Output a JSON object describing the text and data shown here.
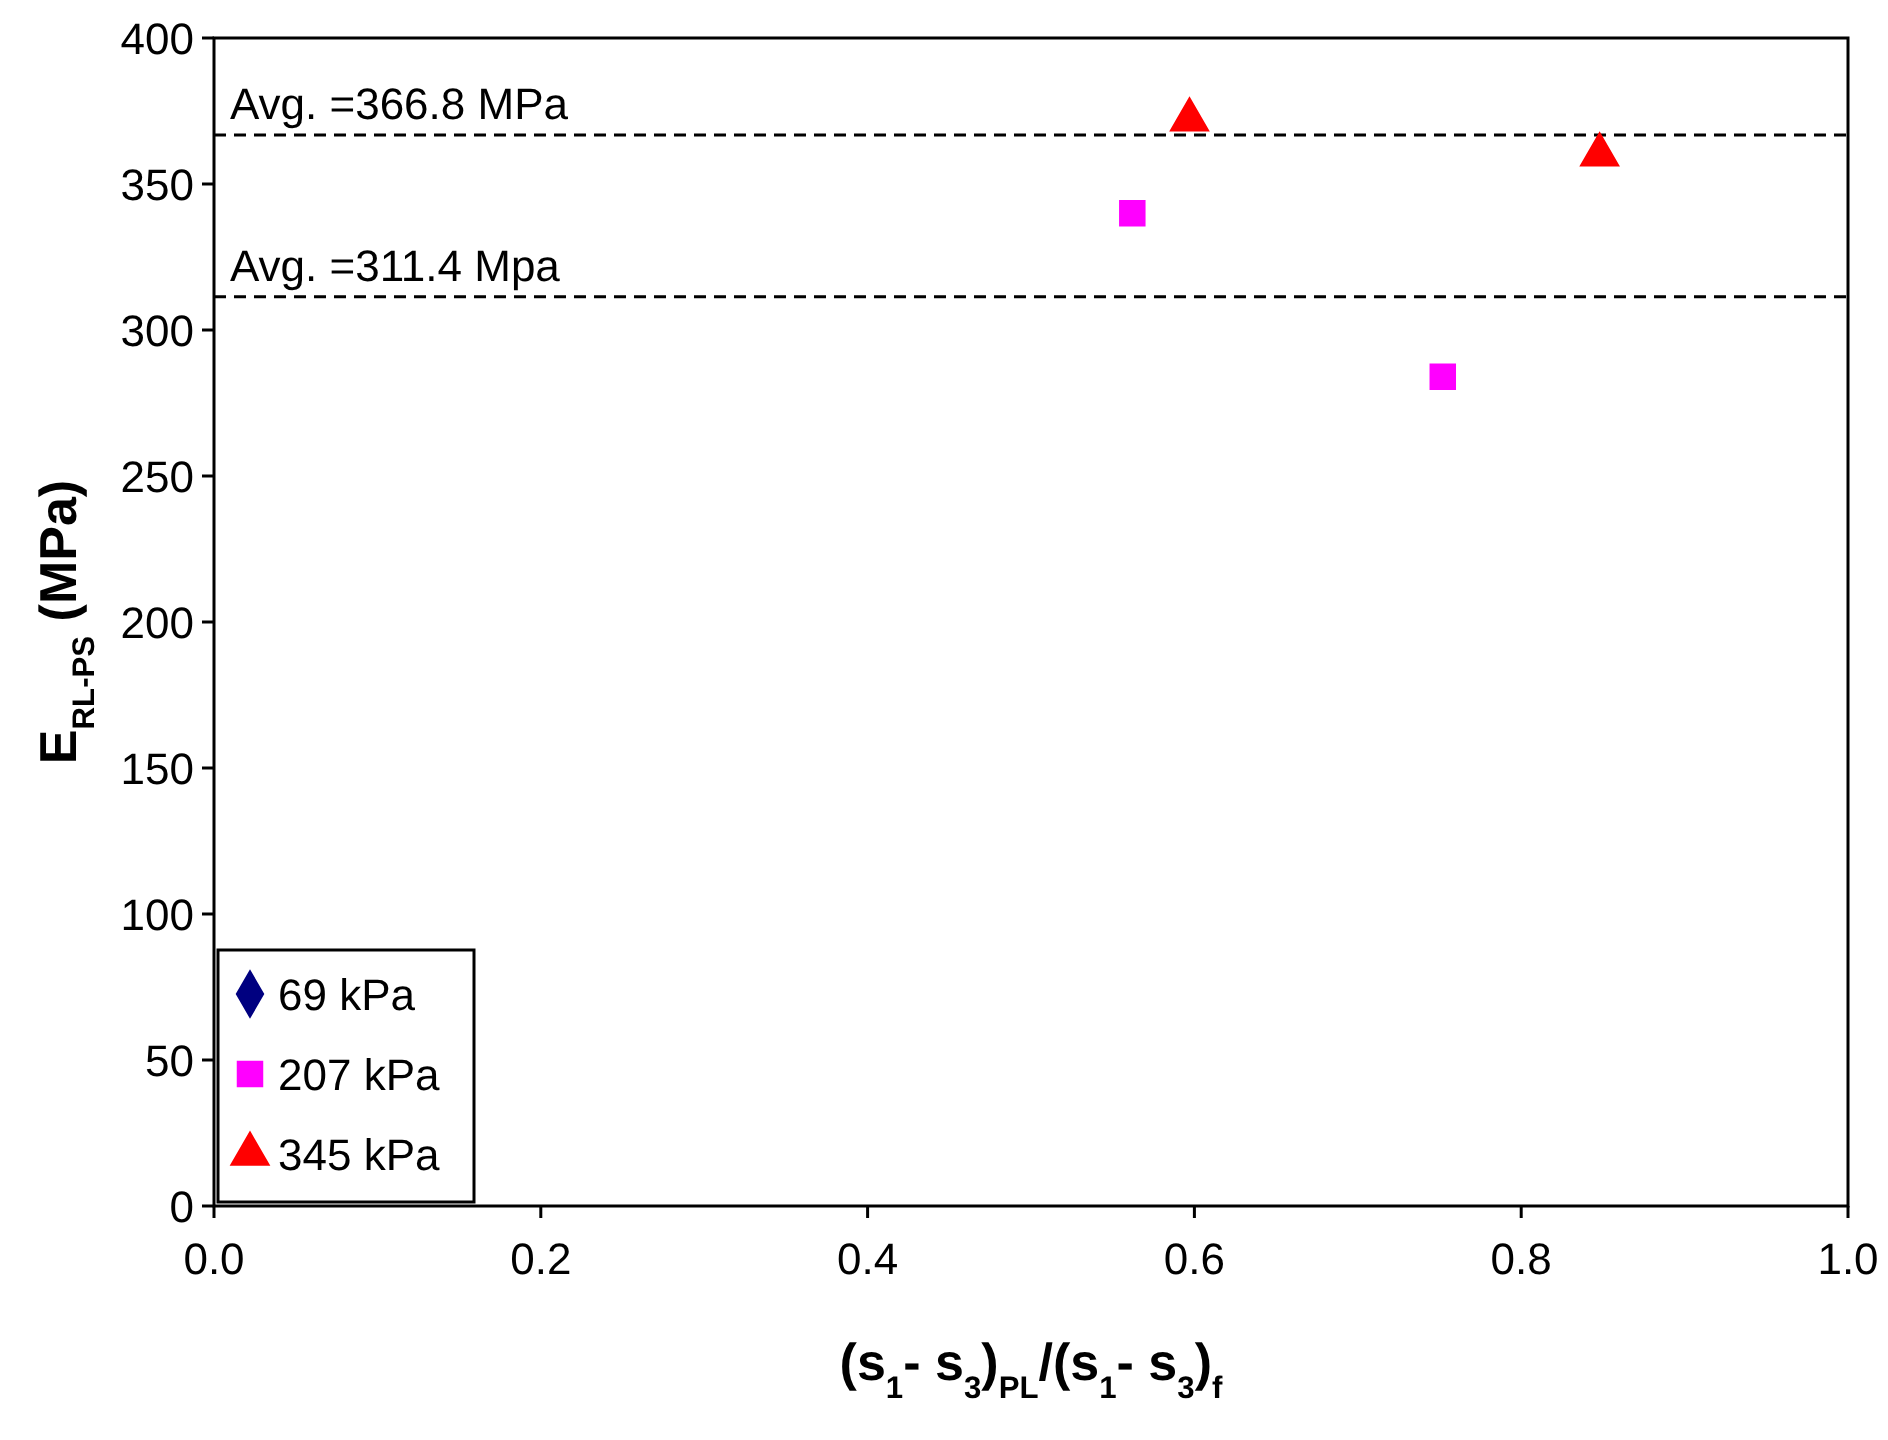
{
  "chart_data": {
    "type": "scatter",
    "xlabel": "(s$_{1}$- s$_{3}$)$_{PL}$/(s$_{1}$- s$_{3}$)$_{f}$",
    "ylabel": "E$_{RL-PS}$ (MPa)",
    "series": [
      {
        "name": "69 kPa",
        "color": "#000080",
        "marker": "diamond"
      },
      {
        "name": "207 kPa",
        "color": "#ff00ff",
        "marker": "square",
        "x": [
          0.562,
          0.752
        ],
        "values": [
          340,
          284
        ]
      },
      {
        "name": "345 kPa",
        "color": "#ff0000",
        "marker": "triangle",
        "x": [
          0.597,
          0.848
        ],
        "values": [
          372,
          360
        ]
      }
    ],
    "xlim": [
      0,
      1
    ],
    "xticks": [
      {
        "value": 0,
        "label": "0.0"
      },
      {
        "value": 0.2,
        "label": "0.2"
      },
      {
        "value": 0.4,
        "label": "0.4"
      },
      {
        "value": 0.6,
        "label": "0.6"
      },
      {
        "value": 0.8,
        "label": "0.8"
      },
      {
        "value": 1,
        "label": "1.0"
      }
    ],
    "ylim": [
      0,
      400
    ],
    "yticks": [
      0,
      50,
      100,
      150,
      200,
      250,
      300,
      350,
      400
    ],
    "ref_lines": [
      {
        "axis": "y",
        "value": 366.8,
        "label": "Avg. =366.8 MPa",
        "line_style": "dashed",
        "color": "#000000"
      },
      {
        "axis": "y",
        "value": 311.4,
        "label": "Avg. =311.4 Mpa",
        "line_style": "dashed",
        "color": "#000000"
      }
    ],
    "grid": false,
    "legend": "bottom left"
  }
}
